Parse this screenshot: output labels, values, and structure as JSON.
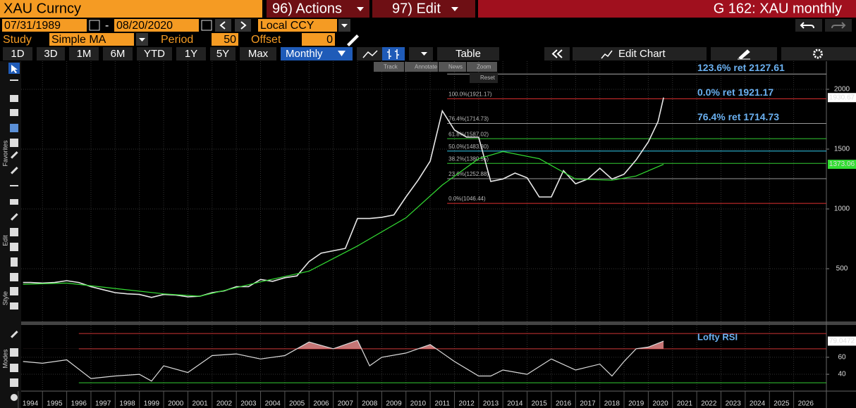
{
  "header": {
    "security": "XAU Curncy",
    "actions": "96) Actions",
    "edit": "97) Edit",
    "title": "G 162: XAU monthly"
  },
  "controls": {
    "start": "07/31/1989",
    "dash": "-",
    "end": "08/20/2020",
    "currency": "Local CCY",
    "study_label": "Study",
    "study": "Simple MA",
    "period_label": "Period",
    "period": 50,
    "offset_label": "Offset",
    "offset": 0
  },
  "tabs": [
    "1D",
    "3D",
    "1M",
    "6M",
    "YTD",
    "1Y",
    "5Y",
    "Max"
  ],
  "frequency": "Monthly",
  "table_button": "Table",
  "edit_chart": "Edit Chart",
  "sidebar_labels": [
    "Favorites",
    "Edit",
    "Style",
    "Modes"
  ],
  "chart_tools": [
    "Track",
    "Annotate",
    "News",
    "Zoom",
    "Reset"
  ],
  "chart_data": [
    {
      "type": "line",
      "xlim": [
        1994.12,
        2027.35
      ],
      "xticks": [
        1994,
        1995,
        1996,
        1997,
        1998,
        1999,
        2000,
        2001,
        2002,
        2003,
        2004,
        2005,
        2006,
        2007,
        2008,
        2009,
        2010,
        2011,
        2012,
        2013,
        2014,
        2015,
        2016,
        2017,
        2018,
        2019,
        2020,
        2021,
        2022,
        2023,
        2024,
        2025,
        2026
      ],
      "ylim": [
        59,
        2235
      ],
      "yticks": [
        500,
        1000,
        1500,
        2000
      ],
      "series": [
        {
          "name": "XAU",
          "color": "#e8e8e8",
          "x": [
            1994.2,
            1994.5,
            1995,
            1995.5,
            1996,
            1996.5,
            1997,
            1997.5,
            1998,
            1998.5,
            1999,
            1999.5,
            2000,
            2000.5,
            2001,
            2001.5,
            2002,
            2002.5,
            2003,
            2003.5,
            2004,
            2004.5,
            2005,
            2005.5,
            2006,
            2006.5,
            2007,
            2007.5,
            2008,
            2008.5,
            2009,
            2009.5,
            2010,
            2010.5,
            2011,
            2011.5,
            2012,
            2012.5,
            2013,
            2013.5,
            2014,
            2014.5,
            2015,
            2015.5,
            2016,
            2016.5,
            2017,
            2017.5,
            2018,
            2018.5,
            2019,
            2019.5,
            2020,
            2020.4,
            2020.63
          ],
          "values": [
            385,
            385,
            380,
            385,
            400,
            385,
            350,
            325,
            300,
            290,
            285,
            260,
            285,
            280,
            265,
            270,
            300,
            315,
            350,
            350,
            410,
            395,
            425,
            440,
            560,
            630,
            650,
            670,
            920,
            920,
            930,
            950,
            1100,
            1240,
            1400,
            1820,
            1660,
            1600,
            1600,
            1230,
            1250,
            1300,
            1260,
            1100,
            1100,
            1320,
            1210,
            1250,
            1340,
            1250,
            1290,
            1410,
            1560,
            1730,
            1930.67
          ]
        },
        {
          "name": "Simple MA",
          "color": "#33dd33",
          "x": [
            1994.2,
            1996,
            1998,
            2000,
            2001.5,
            2004,
            2006,
            2008,
            2010,
            2011.5,
            2013,
            2014,
            2015.5,
            2017,
            2018.5,
            2019.5,
            2020.63
          ],
          "values": [
            370,
            380,
            335,
            290,
            270,
            390,
            480,
            690,
            925,
            1200,
            1420,
            1480,
            1420,
            1250,
            1240,
            1275,
            1373.06
          ]
        }
      ],
      "fib_start": 2011.7,
      "fib_levels": [
        {
          "value": 2127.61,
          "color": "#aaaaaa",
          "label": "123.6% ret 2127.61"
        },
        {
          "value": 1921.17,
          "color": "#e03030",
          "label": "0.0% ret 1921.17",
          "tag": "100.0%(1921.17)"
        },
        {
          "value": 1714.73,
          "color": "#999999",
          "label": "76.4% ret 1714.73",
          "tag": "76.4%(1714.73)"
        },
        {
          "value": 1587.02,
          "color": "#33cc33",
          "tag": "61.8%(1587.02)"
        },
        {
          "value": 1483.8,
          "color": "#33ccee",
          "tag": "50.0%(1483.80)"
        },
        {
          "value": 1380.55,
          "color": "#33cc33",
          "tag": "38.2%(1380.55)"
        },
        {
          "value": 1252.88,
          "color": "#999999",
          "tag": "23.6%(1252.88)"
        },
        {
          "value": 1046.44,
          "color": "#e03030",
          "tag": "0.0%(1046.44)"
        }
      ]
    },
    {
      "type": "line",
      "title": "Lofty RSI",
      "xlim": [
        1994.12,
        2027.35
      ],
      "ylim": [
        21,
        98
      ],
      "yticks": [
        40,
        60
      ],
      "levels": [
        {
          "value": 88,
          "color": "#cc3333"
        },
        {
          "value": 70,
          "color": "#cc3333"
        },
        {
          "value": 30,
          "color": "#33cc33"
        }
      ],
      "series": [
        {
          "name": "RSI",
          "color": "#dddddd",
          "x": [
            1994.2,
            1995,
            1996,
            1997,
            1998,
            1999,
            1999.5,
            2000,
            2001,
            2002,
            2003,
            2004,
            2005,
            2006,
            2007,
            2008,
            2008.5,
            2009,
            2010,
            2011,
            2012,
            2013,
            2013.5,
            2014,
            2015,
            2016,
            2017,
            2018,
            2018.5,
            2019,
            2019.5,
            2020,
            2020.63
          ],
          "values": [
            55,
            53,
            57,
            35,
            38,
            40,
            32,
            50,
            42,
            62,
            64,
            58,
            62,
            78,
            70,
            80,
            50,
            60,
            65,
            75,
            55,
            38,
            38,
            45,
            40,
            58,
            45,
            52,
            38,
            55,
            70,
            72,
            79.0472
          ]
        }
      ]
    }
  ]
}
